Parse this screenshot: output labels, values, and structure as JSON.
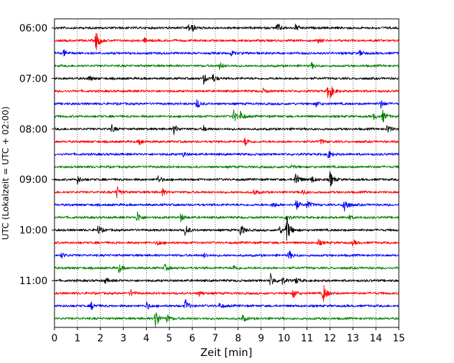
{
  "chart_data": {
    "type": "line",
    "title": "",
    "xlabel": "Zeit  [min]",
    "ylabel": "UTC (Lokalzeit = UTC + 02:00)",
    "xlim": [
      0,
      15
    ],
    "x_ticks": [
      "0",
      "1",
      "2",
      "3",
      "4",
      "5",
      "6",
      "7",
      "8",
      "9",
      "10",
      "11",
      "12",
      "13",
      "14",
      "15"
    ],
    "y_ticks": [
      "06:00",
      "07:00",
      "08:00",
      "09:00",
      "10:00",
      "11:00"
    ],
    "grid": "vertical dotted",
    "legend": "none",
    "trace_interval_minutes": 15,
    "color_cycle": [
      "#000000",
      "#ff0000",
      "#0000ff",
      "#008000"
    ],
    "traces": [
      {
        "start": "06:00",
        "color": "#000000",
        "events": [
          [
            5.8,
            0.35
          ],
          [
            9.7,
            0.45
          ],
          [
            10.5,
            0.3
          ],
          [
            6.0,
            0.25
          ]
        ]
      },
      {
        "start": "06:15",
        "color": "#ff0000",
        "events": [
          [
            1.8,
            1.0
          ],
          [
            3.9,
            0.2
          ],
          [
            11.5,
            0.2
          ]
        ]
      },
      {
        "start": "06:30",
        "color": "#0000ff",
        "events": [
          [
            0.4,
            0.3
          ],
          [
            7.7,
            0.25
          ],
          [
            13.3,
            0.25
          ]
        ]
      },
      {
        "start": "06:45",
        "color": "#008000",
        "events": [
          [
            7.2,
            0.3
          ],
          [
            11.2,
            0.25
          ]
        ]
      },
      {
        "start": "07:00",
        "color": "#000000",
        "events": [
          [
            6.5,
            0.45
          ],
          [
            6.9,
            0.35
          ],
          [
            1.5,
            0.25
          ]
        ]
      },
      {
        "start": "07:15",
        "color": "#ff0000",
        "events": [
          [
            11.9,
            0.6
          ],
          [
            12.0,
            0.4
          ],
          [
            9.1,
            0.2
          ]
        ]
      },
      {
        "start": "07:30",
        "color": "#0000ff",
        "events": [
          [
            6.2,
            0.45
          ],
          [
            11.4,
            0.25
          ],
          [
            14.2,
            0.4
          ]
        ]
      },
      {
        "start": "07:45",
        "color": "#008000",
        "events": [
          [
            7.8,
            0.6
          ],
          [
            8.1,
            0.4
          ],
          [
            14.3,
            0.55
          ],
          [
            13.9,
            0.25
          ]
        ]
      },
      {
        "start": "08:00",
        "color": "#000000",
        "events": [
          [
            5.2,
            0.45
          ],
          [
            2.5,
            0.3
          ],
          [
            6.5,
            0.25
          ],
          [
            14.5,
            0.4
          ]
        ]
      },
      {
        "start": "08:15",
        "color": "#ff0000",
        "events": [
          [
            3.7,
            0.3
          ],
          [
            8.3,
            0.4
          ],
          [
            11.6,
            0.2
          ]
        ]
      },
      {
        "start": "08:30",
        "color": "#0000ff",
        "events": [
          [
            11.9,
            0.45
          ],
          [
            5.6,
            0.2
          ]
        ]
      },
      {
        "start": "08:45",
        "color": "#008000",
        "events": [
          [
            10.3,
            0.2
          ]
        ]
      },
      {
        "start": "09:00",
        "color": "#000000",
        "events": [
          [
            1.0,
            0.35
          ],
          [
            4.5,
            0.35
          ],
          [
            10.5,
            0.75
          ],
          [
            12.0,
            0.75
          ],
          [
            11.2,
            0.3
          ]
        ]
      },
      {
        "start": "09:15",
        "color": "#ff0000",
        "events": [
          [
            2.7,
            0.6
          ],
          [
            4.7,
            0.3
          ],
          [
            8.7,
            0.25
          ],
          [
            10.8,
            0.25
          ]
        ]
      },
      {
        "start": "09:30",
        "color": "#0000ff",
        "events": [
          [
            10.5,
            0.55
          ],
          [
            11.0,
            0.45
          ],
          [
            12.6,
            0.95
          ],
          [
            9.5,
            0.3
          ]
        ]
      },
      {
        "start": "09:45",
        "color": "#008000",
        "events": [
          [
            3.6,
            0.55
          ],
          [
            5.5,
            0.35
          ],
          [
            10.1,
            0.3
          ],
          [
            12.8,
            0.25
          ]
        ]
      },
      {
        "start": "10:00",
        "color": "#000000",
        "events": [
          [
            1.9,
            0.45
          ],
          [
            5.7,
            0.55
          ],
          [
            8.1,
            0.6
          ],
          [
            10.1,
            1.4
          ],
          [
            9.8,
            0.35
          ]
        ]
      },
      {
        "start": "10:15",
        "color": "#ff0000",
        "events": [
          [
            4.5,
            0.25
          ],
          [
            11.5,
            0.25
          ],
          [
            13.0,
            0.25
          ]
        ]
      },
      {
        "start": "10:30",
        "color": "#0000ff",
        "events": [
          [
            10.2,
            0.45
          ],
          [
            0.3,
            0.25
          ],
          [
            6.5,
            0.2
          ]
        ]
      },
      {
        "start": "10:45",
        "color": "#008000",
        "events": [
          [
            2.8,
            0.4
          ],
          [
            4.8,
            0.3
          ],
          [
            7.8,
            0.25
          ]
        ]
      },
      {
        "start": "11:00",
        "color": "#000000",
        "events": [
          [
            9.4,
            0.65
          ],
          [
            9.9,
            0.4
          ],
          [
            10.5,
            0.3
          ],
          [
            2.2,
            0.25
          ]
        ]
      },
      {
        "start": "11:15",
        "color": "#ff0000",
        "events": [
          [
            11.7,
            0.95
          ],
          [
            10.4,
            0.45
          ],
          [
            3.3,
            0.35
          ],
          [
            6.3,
            0.25
          ]
        ]
      },
      {
        "start": "11:30",
        "color": "#0000ff",
        "events": [
          [
            1.6,
            0.35
          ],
          [
            4.0,
            0.35
          ],
          [
            5.7,
            0.6
          ],
          [
            7.2,
            0.25
          ]
        ]
      },
      {
        "start": "11:45",
        "color": "#008000",
        "events": [
          [
            4.4,
            1.0
          ],
          [
            4.9,
            0.35
          ],
          [
            8.2,
            0.3
          ]
        ]
      }
    ]
  }
}
